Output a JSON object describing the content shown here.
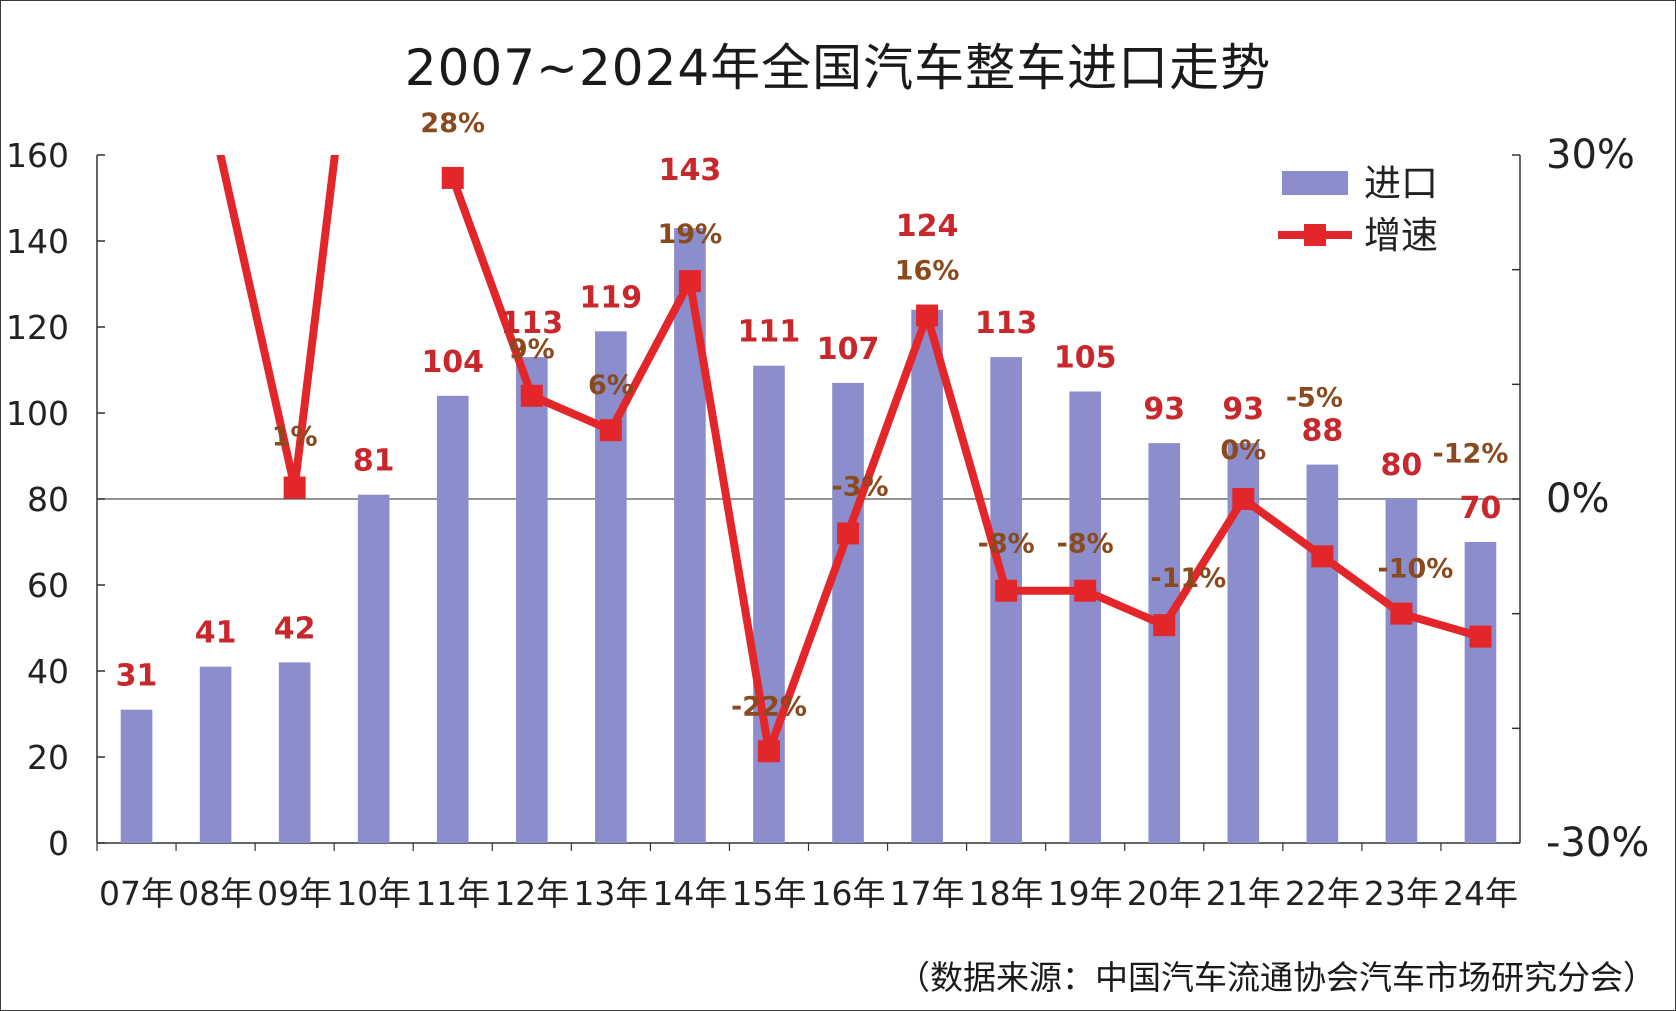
{
  "chart_data": {
    "type": "bar+line",
    "title": "2007~2024年全国汽车整车进口走势",
    "source": "（数据来源：中国汽车流通协会汽车市场研究分会）",
    "categories": [
      "07年",
      "08年",
      "09年",
      "10年",
      "11年",
      "12年",
      "13年",
      "14年",
      "15年",
      "16年",
      "17年",
      "18年",
      "19年",
      "20年",
      "21年",
      "22年",
      "23年",
      "24年"
    ],
    "legend": {
      "position": "top-right",
      "entries": [
        "进口",
        "增速"
      ]
    },
    "left_axis": {
      "ylim": [
        0,
        160
      ],
      "ticks": [
        "0",
        "20",
        "40",
        "60",
        "80",
        "100",
        "120",
        "140",
        "160"
      ]
    },
    "right_axis": {
      "ylim": [
        -30,
        30
      ],
      "ticks": [
        "-30%",
        "0%",
        "30%"
      ]
    },
    "grid": false,
    "series": [
      {
        "name": "进口",
        "type": "bar",
        "axis": "left",
        "color": "#8c8dcc",
        "values": [
          31,
          41,
          42,
          81,
          104,
          113,
          119,
          143,
          111,
          107,
          124,
          113,
          105,
          93,
          93,
          88,
          80,
          70
        ],
        "labels": [
          "31",
          "41",
          "42",
          "81",
          "104",
          "113",
          "119",
          "143",
          "111",
          "107",
          "124",
          "113",
          "105",
          "93",
          "93",
          "88",
          "80",
          "70"
        ]
      },
      {
        "name": "增速",
        "type": "line",
        "axis": "right",
        "color": "#e3262a",
        "values": [
          null,
          null,
          1,
          null,
          28,
          9,
          6,
          19,
          -22,
          -3,
          16,
          -8,
          -8,
          -11,
          0,
          -5,
          -10,
          -12
        ],
        "labels": [
          "",
          "",
          "1%",
          "",
          "28%",
          "9%",
          "6%",
          "19%",
          "-22%",
          "-3%",
          "16%",
          "-8%",
          "-8%",
          "-11%",
          "0%",
          "-5%",
          "-10%",
          "-12%"
        ]
      }
    ]
  }
}
